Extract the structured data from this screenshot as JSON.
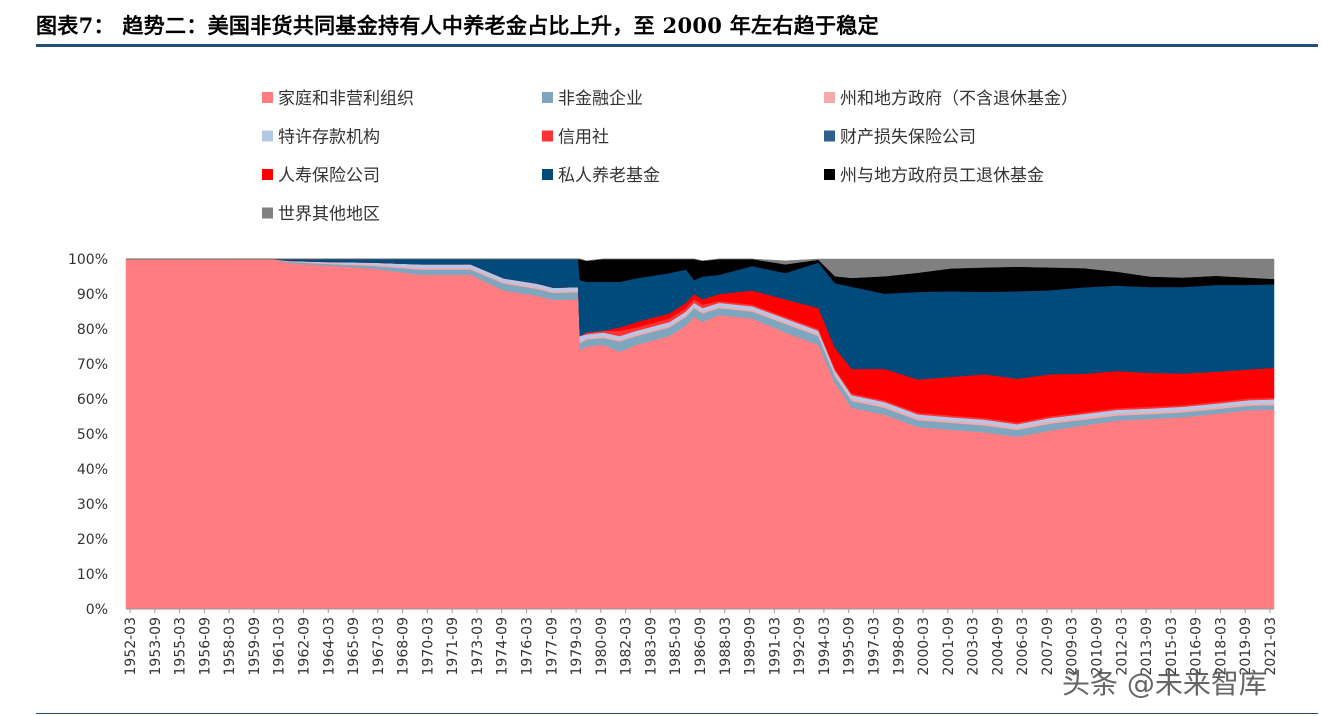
{
  "figure": {
    "title": "图表7：  趋势二：美国非货共同基金持有人中养老金占比上升，至 2000 年左右趋于稳定",
    "watermark": "头条 @未来智库"
  },
  "chart_data": {
    "type": "area",
    "stacked": true,
    "normalized_percent": true,
    "title": "",
    "xlabel": "",
    "ylabel": "",
    "ylim": [
      0,
      100
    ],
    "yticks": [
      "0%",
      "10%",
      "20%",
      "30%",
      "40%",
      "50%",
      "60%",
      "70%",
      "80%",
      "90%",
      "100%"
    ],
    "xticks": [
      "1952-03",
      "1953-09",
      "1955-03",
      "1956-09",
      "1958-03",
      "1959-09",
      "1961-03",
      "1962-09",
      "1964-03",
      "1965-09",
      "1967-03",
      "1968-09",
      "1970-03",
      "1971-09",
      "1973-03",
      "1974-09",
      "1976-03",
      "1977-09",
      "1979-03",
      "1980-09",
      "1982-03",
      "1983-09",
      "1985-03",
      "1986-09",
      "1988-03",
      "1989-09",
      "1991-03",
      "1992-09",
      "1994-03",
      "1995-09",
      "1997-03",
      "1998-09",
      "2000-03",
      "2001-09",
      "2003-03",
      "2004-09",
      "2006-03",
      "2007-09",
      "2009-03",
      "2010-09",
      "2012-03",
      "2013-09",
      "2015-03",
      "2016-09",
      "2018-03",
      "2019-09",
      "2021-03"
    ],
    "x": [
      1952.2,
      1955,
      1958,
      1961,
      1962,
      1964,
      1967,
      1970,
      1973,
      1975,
      1977,
      1978,
      1979.5,
      1979.6,
      1980,
      1981,
      1982,
      1983,
      1985,
      1986,
      1986.5,
      1987,
      1988,
      1990,
      1992,
      1994,
      1995,
      1996,
      1998,
      2000,
      2002,
      2004,
      2006,
      2008,
      2010,
      2012,
      2014,
      2016,
      2018,
      2020,
      2021.5
    ],
    "grid": false,
    "legend_position": "top",
    "series": [
      {
        "name": "家庭和非营利组织",
        "color": "#ff7c80",
        "values": [
          100,
          100,
          100,
          100,
          98.8,
          98.2,
          97.3,
          95.5,
          95.5,
          91,
          89.5,
          88.3,
          88.5,
          74,
          75,
          75.5,
          73.5,
          75.5,
          78,
          81,
          83.5,
          82,
          84,
          83,
          79,
          75.5,
          64.5,
          57.5,
          55.5,
          52,
          51.2,
          50.5,
          49.2,
          51,
          52.5,
          53.8,
          54.3,
          54.8,
          55.8,
          56.8,
          57
        ]
      },
      {
        "name": "非金融企业",
        "color": "#7fa6bf",
        "values": [
          0,
          0,
          0,
          0,
          0.4,
          0.5,
          0.8,
          1.5,
          1.5,
          2,
          2,
          2,
          2,
          2,
          2,
          2,
          3,
          2.5,
          2.5,
          2.5,
          2.5,
          2.5,
          2,
          2,
          2.5,
          2.5,
          2,
          2,
          2,
          2,
          2,
          2,
          2,
          2,
          1.6,
          1.5,
          1.4,
          1.4,
          1.3,
          1.3,
          1.3
        ]
      },
      {
        "name": "州和地方政府（不含退休基金）",
        "color": "#f4aaaa",
        "values": [
          0,
          0,
          0,
          0,
          0.2,
          0.2,
          0.4,
          0.5,
          0.5,
          0.5,
          0.5,
          0.5,
          0.5,
          0.5,
          0.5,
          0.5,
          0.5,
          0.5,
          0.5,
          0.5,
          0.5,
          0.5,
          0.5,
          0.5,
          0.5,
          0.5,
          0.6,
          0.6,
          0.6,
          0.6,
          0.6,
          0.6,
          0.6,
          0.6,
          0.6,
          0.6,
          0.6,
          0.6,
          0.6,
          0.6,
          0.6
        ]
      },
      {
        "name": "特许存款机构",
        "color": "#b4c7e7",
        "values": [
          0,
          0,
          0,
          0,
          0.1,
          0.3,
          0.5,
          1,
          1,
          1,
          1,
          1,
          1,
          1.5,
          1,
          1,
          1,
          1,
          1,
          1,
          1,
          1,
          1,
          1,
          1,
          1,
          1,
          1,
          1,
          1,
          1,
          1,
          1,
          1,
          1,
          1,
          1,
          1,
          1,
          1,
          1
        ]
      },
      {
        "name": "信用社",
        "color": "#ff3333",
        "values": [
          0,
          0,
          0,
          0,
          0,
          0,
          0,
          0,
          0,
          0,
          0,
          0,
          0,
          0,
          0.5,
          0.5,
          1.5,
          1,
          1,
          1,
          1,
          1,
          0.5,
          0.5,
          0.5,
          0.5,
          0.5,
          0.5,
          0.5,
          0.5,
          0.5,
          0.5,
          0.5,
          0.5,
          0.5,
          0.5,
          0.5,
          0.5,
          0.5,
          0.5,
          0.5
        ]
      },
      {
        "name": "财产损失保险公司",
        "color": "#2e5f8a",
        "values": [
          0,
          0,
          0,
          0,
          0,
          0,
          0,
          0,
          0,
          0,
          0,
          0,
          0,
          0,
          0,
          0,
          0,
          0,
          0,
          0,
          0,
          0,
          0,
          0,
          0,
          0,
          0,
          0,
          0,
          0,
          0,
          0,
          0,
          0,
          0,
          0,
          0,
          0,
          0,
          0,
          0
        ]
      },
      {
        "name": "人寿保险公司",
        "color": "#ff0000",
        "values": [
          0,
          0,
          0,
          0,
          0,
          0,
          0,
          0,
          0,
          0,
          0,
          0,
          0,
          0,
          0,
          0,
          1,
          1.5,
          1.5,
          1.5,
          1.5,
          1.5,
          2,
          4,
          5,
          6,
          6,
          7,
          9,
          9.5,
          11,
          12.5,
          12.5,
          12,
          11,
          10.6,
          9.7,
          9,
          8.6,
          8.3,
          8.5
        ]
      },
      {
        "name": "私人养老基金",
        "color": "#004a7c",
        "values": [
          0,
          0,
          0,
          0,
          0.5,
          0.8,
          1,
          1.5,
          2,
          5.5,
          7,
          8.2,
          8,
          16,
          14.5,
          14,
          13,
          12.5,
          11.5,
          9.5,
          4,
          6.5,
          5.5,
          7,
          7.5,
          13,
          18.5,
          23.5,
          21.5,
          25,
          24.5,
          23.5,
          25,
          24,
          24.7,
          24.4,
          24.5,
          24.7,
          24.8,
          24.1,
          23.9
        ]
      },
      {
        "name": "州与地方政府员工退休基金",
        "color": "#000000",
        "values": [
          0,
          0,
          0,
          0,
          0,
          0,
          0,
          0,
          0,
          0,
          0,
          0,
          0,
          6,
          6,
          6.5,
          6.5,
          6,
          4,
          3.5,
          6,
          4.5,
          4.5,
          4,
          2.5,
          0.8,
          2,
          2.5,
          5,
          5.5,
          6.5,
          7,
          7,
          6.5,
          5.5,
          4,
          3,
          2.7,
          2.6,
          2.1,
          1.5
        ]
      },
      {
        "name": "世界其他地区",
        "color": "#808080",
        "values": [
          0,
          0,
          0,
          0,
          0,
          0,
          0,
          0,
          0,
          0,
          0,
          0,
          0,
          0,
          0,
          0,
          0,
          0,
          0,
          0,
          0,
          0,
          0,
          0,
          1,
          2.7,
          5,
          5.4,
          5,
          4,
          3.7,
          3.4,
          3.2,
          3.4,
          3.6,
          4.4,
          5,
          5.3,
          5.5,
          5.3,
          5.7
        ]
      }
    ]
  }
}
